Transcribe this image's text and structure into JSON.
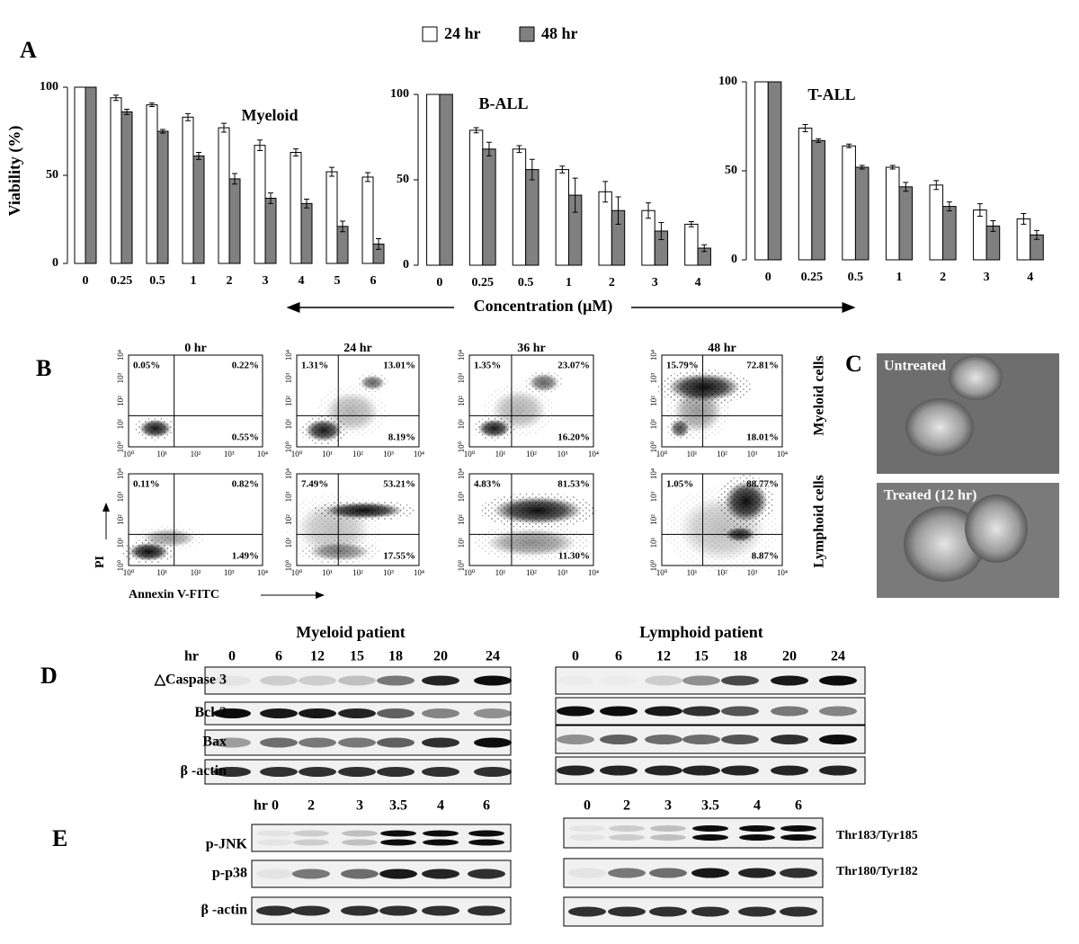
{
  "chart_data": [
    {
      "type": "bar",
      "title": "Myeloid",
      "ylabel": "Viability (%)",
      "categories": [
        "0",
        "0.25",
        "0.5",
        "1",
        "2",
        "3",
        "4",
        "5",
        "6"
      ],
      "series": [
        {
          "name": "24 hr",
          "color": "#ffffff",
          "values": [
            100,
            94,
            90,
            83,
            77,
            67,
            63,
            52,
            49
          ],
          "errors": [
            0,
            1.5,
            1,
            2,
            2.5,
            3,
            2,
            2.5,
            2.5
          ]
        },
        {
          "name": "48 hr",
          "color": "#808080",
          "values": [
            100,
            86,
            75,
            61,
            48,
            37,
            34,
            21,
            11
          ],
          "errors": [
            0,
            1.5,
            1,
            2,
            3,
            3,
            2.5,
            3,
            3
          ]
        }
      ],
      "ylim": [
        0,
        100
      ],
      "yticks": [
        0,
        50,
        100
      ]
    },
    {
      "type": "bar",
      "title": "B-ALL",
      "xlabel": "Concentration (μM)",
      "categories": [
        "0",
        "0.25",
        "0.5",
        "1",
        "2",
        "3",
        "4"
      ],
      "series": [
        {
          "color": "#ffffff",
          "values": [
            100,
            79,
            68,
            56,
            43,
            32,
            24
          ],
          "errors": [
            0,
            1.5,
            2,
            2,
            6,
            4.5,
            1.5
          ]
        },
        {
          "color": "#808080",
          "values": [
            100,
            68,
            56,
            41,
            32,
            20,
            10
          ],
          "errors": [
            0,
            4,
            6,
            10,
            8,
            5,
            2
          ]
        }
      ],
      "ylim": [
        0,
        100
      ],
      "yticks": [
        0,
        50,
        100
      ]
    },
    {
      "type": "bar",
      "title": "T-ALL",
      "categories": [
        "0",
        "0.25",
        "0.5",
        "1",
        "2",
        "3",
        "4"
      ],
      "series": [
        {
          "color": "#ffffff",
          "values": [
            100,
            74,
            64,
            52,
            42,
            28,
            23
          ],
          "errors": [
            0,
            2,
            1,
            1,
            2.5,
            3.5,
            3
          ]
        },
        {
          "color": "#808080",
          "values": [
            100,
            67,
            52,
            41,
            30,
            19,
            14
          ],
          "errors": [
            0,
            1,
            1,
            2.5,
            2.5,
            3,
            2.5
          ]
        }
      ],
      "ylim": [
        0,
        100
      ],
      "yticks": [
        0,
        50,
        100
      ]
    }
  ],
  "panel_labels": [
    "A",
    "B",
    "C",
    "D",
    "E"
  ],
  "flow": {
    "columns": [
      "0 hr",
      "24 hr",
      "36 hr",
      "48 hr"
    ],
    "row_labels": [
      "Myeloid cells",
      "Lymphoid cells"
    ],
    "x_label": "Annexin V-FITC",
    "y_label": "PI",
    "axis_ticks": [
      "10⁰",
      "10¹",
      "10²",
      "10³",
      "10⁴"
    ],
    "plots": [
      [
        [
          "0.05%",
          "0.22%",
          "0.55%"
        ],
        [
          "1.31%",
          "13.01%",
          "8.19%"
        ],
        [
          "1.35%",
          "23.07%",
          "16.20%"
        ],
        [
          "15.79%",
          "72.81%",
          "18.01%"
        ]
      ],
      [
        [
          "0.11%",
          "0.82%",
          "1.49%"
        ],
        [
          "7.49%",
          "53.21%",
          "17.55%"
        ],
        [
          "4.83%",
          "81.53%",
          "11.30%"
        ],
        [
          "1.05%",
          "88.77%",
          "8.87%"
        ]
      ]
    ]
  },
  "sem": {
    "images": [
      "Untreated",
      "Treated (12 hr)"
    ]
  },
  "western_d": {
    "titles": [
      "Myeloid patient",
      "Lymphoid patient"
    ],
    "unit": "hr",
    "lanes": [
      "0",
      "6",
      "12",
      "15",
      "18",
      "20",
      "24"
    ],
    "rows": [
      "△Caspase 3",
      "Bcl-2",
      "Bax",
      "β -actin"
    ]
  },
  "western_e": {
    "unit": "hr",
    "lanes": [
      "0",
      "2",
      "3",
      "3.5",
      "4",
      "6"
    ],
    "rows": [
      "p-JNK",
      "p-p38",
      "β -actin"
    ],
    "sites": [
      "Thr183/Tyr185",
      "Thr180/Tyr182"
    ]
  }
}
